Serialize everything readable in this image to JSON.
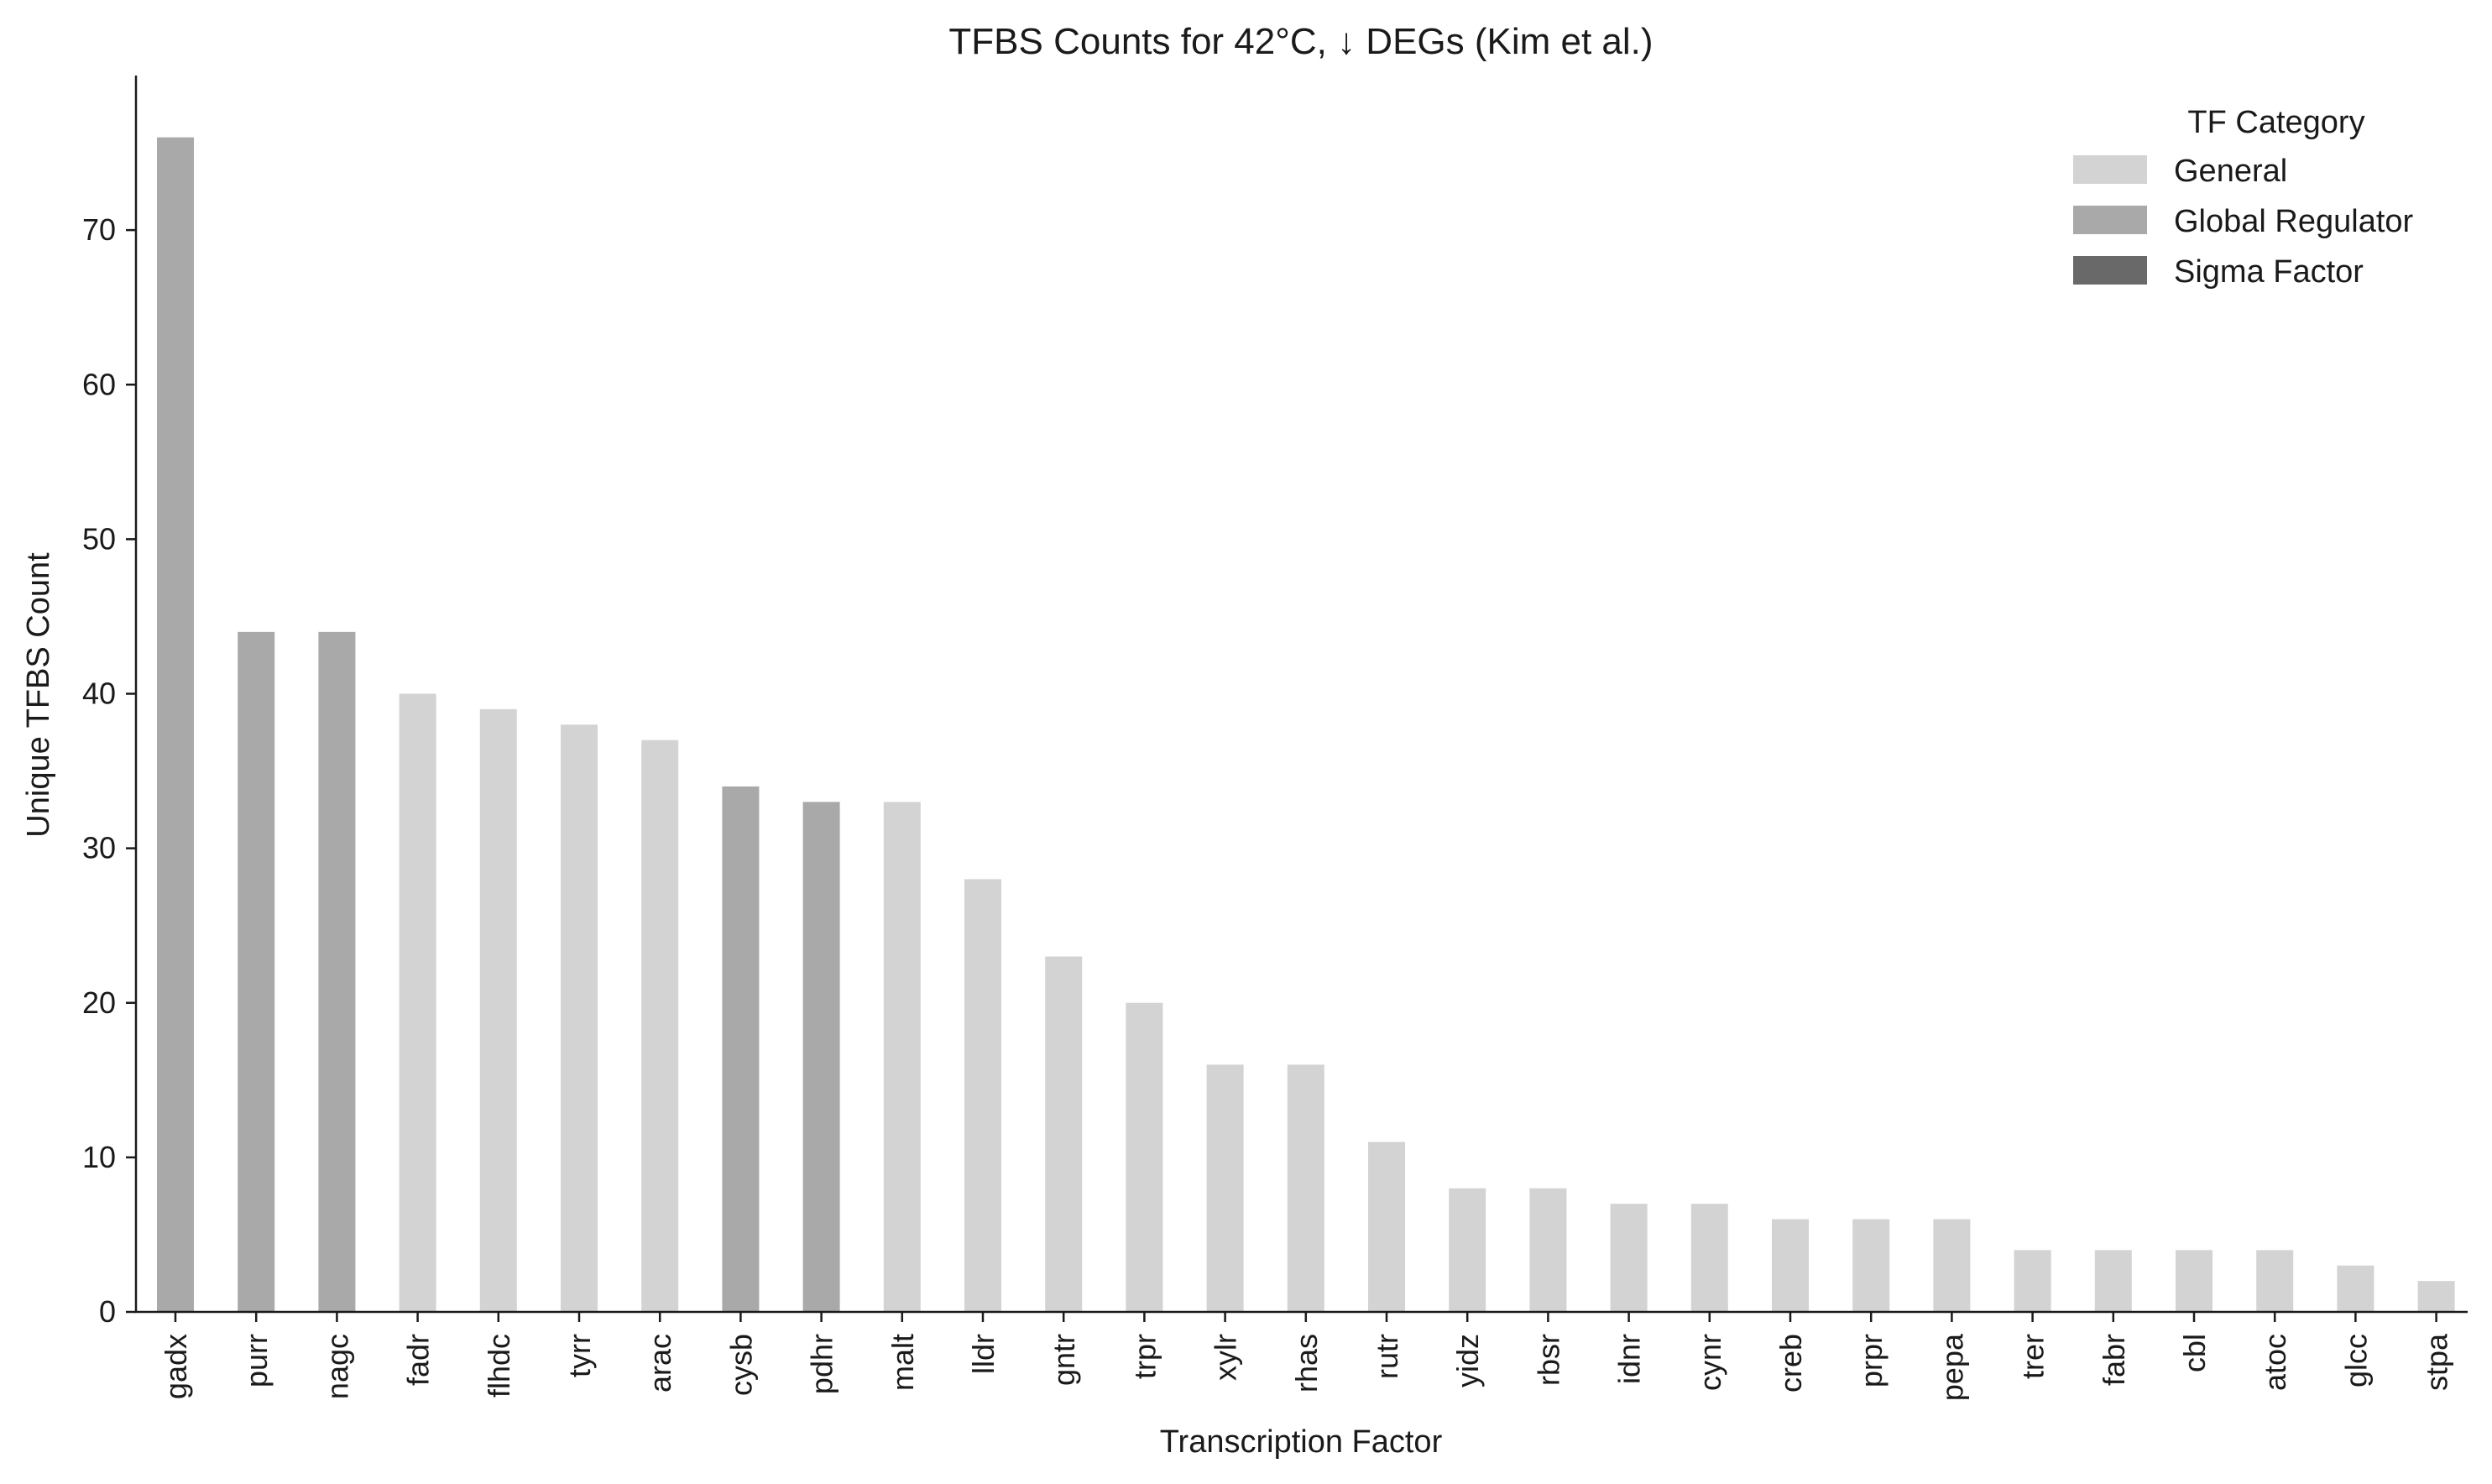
{
  "chart_data": {
    "type": "bar",
    "title": "TFBS Counts for 42°C, ↓ DEGs (Kim et al.)",
    "xlabel": "Transcription Factor",
    "ylabel": "Unique TFBS Count",
    "ylim": [
      0,
      80
    ],
    "yticks": [
      0,
      10,
      20,
      30,
      40,
      50,
      60,
      70
    ],
    "grid": false,
    "legend": {
      "title": "TF Category",
      "placement": "top-right",
      "entries": [
        {
          "label": "General",
          "color": "#d3d3d3"
        },
        {
          "label": "Global Regulator",
          "color": "#a9a9a9"
        },
        {
          "label": "Sigma Factor",
          "color": "#696969"
        }
      ]
    },
    "categories": [
      "gadx",
      "purr",
      "nagc",
      "fadr",
      "flhdc",
      "tyrr",
      "arac",
      "cysb",
      "pdhr",
      "malt",
      "lldr",
      "gntr",
      "trpr",
      "xylr",
      "rhas",
      "rutr",
      "yidz",
      "rbsr",
      "idnr",
      "cynr",
      "creb",
      "prpr",
      "pepa",
      "trer",
      "fabr",
      "cbl",
      "atoc",
      "glcc",
      "stpa"
    ],
    "values": [
      76,
      44,
      44,
      40,
      39,
      38,
      37,
      34,
      33,
      33,
      28,
      23,
      20,
      16,
      16,
      11,
      8,
      8,
      7,
      7,
      6,
      6,
      6,
      4,
      4,
      4,
      4,
      3,
      2
    ],
    "category_of_bar": [
      "Global Regulator",
      "Global Regulator",
      "Global Regulator",
      "General",
      "General",
      "General",
      "General",
      "Global Regulator",
      "Global Regulator",
      "General",
      "General",
      "General",
      "General",
      "General",
      "General",
      "General",
      "General",
      "General",
      "General",
      "General",
      "General",
      "General",
      "General",
      "General",
      "General",
      "General",
      "General",
      "General",
      "General"
    ]
  }
}
